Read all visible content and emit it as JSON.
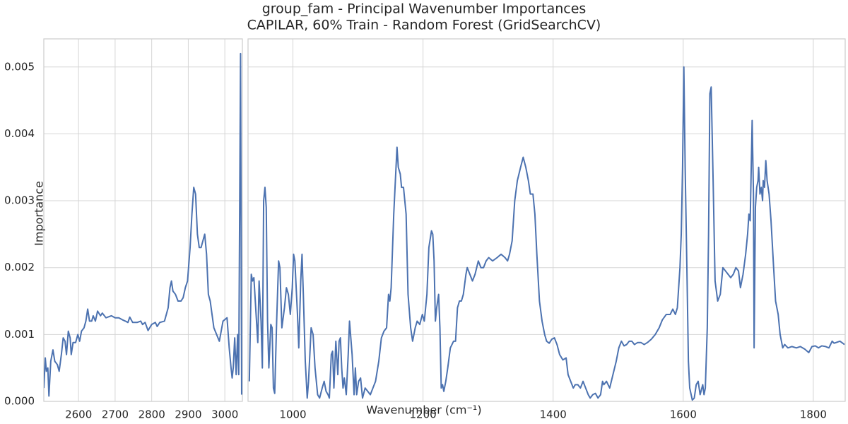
{
  "title": "group_fam - Principal Wavenumber Importances",
  "subtitle": "CAPILAR, 60% Train - Random Forest (GridSearchCV)",
  "x_label": "Wavenumber (cm⁻¹)",
  "y_label": "Importance",
  "chart_data": [
    {
      "type": "line",
      "x": [
        2505,
        2509,
        2512,
        2516,
        2519,
        2524,
        2530,
        2535,
        2542,
        2547,
        2553,
        2558,
        2563,
        2567,
        2572,
        2577,
        2580,
        2585,
        2592,
        2598,
        2603,
        2608,
        2615,
        2620,
        2625,
        2630,
        2636,
        2640,
        2646,
        2652,
        2660,
        2665,
        2675,
        2690,
        2700,
        2710,
        2720,
        2728,
        2735,
        2740,
        2748,
        2760,
        2770,
        2775,
        2782,
        2790,
        2800,
        2810,
        2815,
        2822,
        2835,
        2840,
        2845,
        2850,
        2854,
        2858,
        2865,
        2872,
        2880,
        2886,
        2892,
        2898,
        2905,
        2910,
        2915,
        2920,
        2925,
        2930,
        2935,
        2940,
        2945,
        2950,
        2955,
        2960,
        2965,
        2970,
        2985,
        2995,
        3006,
        3012,
        3017,
        3020,
        3023,
        3027,
        3031,
        3035,
        3038,
        3043,
        3046
      ],
      "series": [
        {
          "color": "#4c72b0",
          "values": [
            0.0002,
            0.00065,
            0.00045,
            0.0005,
            8e-05,
            0.0006,
            0.00077,
            0.0006,
            0.00055,
            0.00045,
            0.0007,
            0.00095,
            0.0009,
            0.0007,
            0.00105,
            0.00095,
            0.0007,
            0.00088,
            0.00088,
            0.001,
            0.0009,
            0.00105,
            0.0011,
            0.0012,
            0.00138,
            0.0012,
            0.0012,
            0.00128,
            0.0012,
            0.00135,
            0.00128,
            0.00132,
            0.00125,
            0.00128,
            0.00125,
            0.00125,
            0.00122,
            0.0012,
            0.00118,
            0.00126,
            0.00118,
            0.00118,
            0.0012,
            0.00115,
            0.00118,
            0.00106,
            0.00115,
            0.00118,
            0.00112,
            0.00118,
            0.0012,
            0.0013,
            0.0014,
            0.0017,
            0.0018,
            0.00165,
            0.0016,
            0.0015,
            0.0015,
            0.00155,
            0.0017,
            0.0018,
            0.0023,
            0.0028,
            0.0032,
            0.0031,
            0.0025,
            0.0023,
            0.0023,
            0.0024,
            0.0025,
            0.0022,
            0.0016,
            0.0015,
            0.0013,
            0.0011,
            0.0009,
            0.0012,
            0.00125,
            0.0008,
            0.0005,
            0.00035,
            0.0005,
            0.00095,
            0.0004,
            0.001,
            0.0004,
            0.0052,
            0.0001
          ]
        }
      ],
      "xlim": [
        2505,
        3048
      ],
      "xticks": [
        2600,
        2700,
        2800,
        2900,
        3000
      ],
      "ylim": [
        0,
        0.00542
      ],
      "yticks": [
        {
          "value": 0,
          "label": "0.000"
        },
        0.001,
        0.002,
        0.003,
        0.004,
        0.005
      ],
      "grid": true
    },
    {
      "type": "line",
      "x": [
        933,
        936,
        938,
        940,
        944,
        946,
        948,
        951,
        953,
        955,
        957,
        959,
        961,
        963,
        966,
        968,
        970,
        972,
        975,
        978,
        980,
        983,
        987,
        990,
        993,
        996,
        999,
        1001,
        1003,
        1007,
        1009,
        1012,
        1014,
        1016,
        1019,
        1022,
        1024,
        1028,
        1031,
        1034,
        1038,
        1041,
        1045,
        1048,
        1051,
        1054,
        1056,
        1059,
        1061,
        1063,
        1066,
        1069,
        1071,
        1073,
        1075,
        1077,
        1079,
        1082,
        1085,
        1087,
        1091,
        1094,
        1096,
        1098,
        1101,
        1104,
        1107,
        1111,
        1115,
        1119,
        1123,
        1127,
        1132,
        1136,
        1140,
        1144,
        1147,
        1149,
        1151,
        1155,
        1158,
        1160,
        1162,
        1165,
        1167,
        1170,
        1174,
        1177,
        1181,
        1184,
        1188,
        1191,
        1195,
        1199,
        1202,
        1206,
        1209,
        1213,
        1215,
        1217,
        1219,
        1221,
        1224,
        1226,
        1228,
        1230,
        1232,
        1235,
        1238,
        1242,
        1247,
        1250,
        1253,
        1256,
        1259,
        1262,
        1266,
        1268,
        1272,
        1276,
        1280,
        1285,
        1289,
        1293,
        1297,
        1301,
        1307,
        1314,
        1320,
        1326,
        1330,
        1333,
        1337,
        1341,
        1345,
        1350,
        1354,
        1358,
        1362,
        1365,
        1369,
        1372,
        1375,
        1379,
        1383,
        1387,
        1390,
        1394,
        1398,
        1402,
        1406,
        1410,
        1415,
        1420,
        1423,
        1427,
        1431,
        1434,
        1438,
        1442,
        1446,
        1450,
        1454,
        1457,
        1461,
        1465,
        1469,
        1473,
        1476,
        1478,
        1482,
        1487,
        1492,
        1497,
        1501,
        1505,
        1509,
        1513,
        1517,
        1521,
        1525,
        1530,
        1535,
        1540,
        1545,
        1551,
        1557,
        1563,
        1568,
        1574,
        1580,
        1584,
        1588,
        1591,
        1595,
        1597,
        1599,
        1601,
        1603,
        1606,
        1608,
        1610,
        1614,
        1617,
        1620,
        1623,
        1626,
        1630,
        1632,
        1634,
        1637,
        1639,
        1641,
        1643,
        1646,
        1649,
        1653,
        1657,
        1661,
        1665,
        1669,
        1673,
        1677,
        1681,
        1685,
        1688,
        1692,
        1696,
        1699,
        1701,
        1703,
        1706,
        1708,
        1709,
        1711,
        1713,
        1715,
        1716,
        1718,
        1720,
        1722,
        1723,
        1725,
        1727,
        1729,
        1732,
        1735,
        1739,
        1742,
        1746,
        1749,
        1753,
        1756,
        1761,
        1767,
        1774,
        1780,
        1787,
        1793,
        1798,
        1803,
        1808,
        1813,
        1819,
        1824,
        1829,
        1832,
        1841,
        1848
      ],
      "series": [
        {
          "color": "#4c72b0",
          "values": [
            0.0003,
            0.0019,
            0.0018,
            0.00185,
            0.0012,
            0.00088,
            0.0018,
            0.0012,
            0.0005,
            0.003,
            0.0032,
            0.0029,
            0.0012,
            0.0005,
            0.00115,
            0.0011,
            0.0002,
            0.00012,
            0.0012,
            0.0021,
            0.002,
            0.0011,
            0.0014,
            0.0017,
            0.0016,
            0.0013,
            0.0017,
            0.0022,
            0.0021,
            0.0013,
            0.0008,
            0.0018,
            0.0022,
            0.0016,
            0.0006,
            5e-05,
            0.0003,
            0.0011,
            0.001,
            0.0005,
            0.0001,
            5e-05,
            0.0002,
            0.0003,
            0.00015,
            0.0001,
            5e-05,
            0.0007,
            0.00075,
            0.0002,
            0.0009,
            0.0004,
            0.0009,
            0.00095,
            0.0005,
            0.0002,
            0.00035,
            0.0001,
            0.0007,
            0.0012,
            0.0007,
            0.0001,
            0.0005,
            0.0001,
            0.0003,
            0.00035,
            5e-05,
            0.0002,
            0.00015,
            0.0001,
            0.0002,
            0.0003,
            0.0006,
            0.00095,
            0.00105,
            0.0011,
            0.0016,
            0.0015,
            0.0017,
            0.0028,
            0.0034,
            0.0038,
            0.0035,
            0.0034,
            0.0032,
            0.0032,
            0.0028,
            0.0016,
            0.0011,
            0.0009,
            0.0011,
            0.0012,
            0.00115,
            0.0013,
            0.0012,
            0.0016,
            0.0023,
            0.00255,
            0.0025,
            0.0021,
            0.0012,
            0.0014,
            0.0016,
            0.0011,
            0.0002,
            0.00025,
            0.00015,
            0.0003,
            0.0005,
            0.0008,
            0.0009,
            0.0009,
            0.0014,
            0.0015,
            0.0015,
            0.0016,
            0.0019,
            0.002,
            0.0019,
            0.0018,
            0.0019,
            0.0021,
            0.002,
            0.002,
            0.0021,
            0.00215,
            0.0021,
            0.00215,
            0.0022,
            0.00215,
            0.0021,
            0.0022,
            0.0024,
            0.003,
            0.0033,
            0.0035,
            0.00365,
            0.0035,
            0.0033,
            0.0031,
            0.0031,
            0.0028,
            0.0022,
            0.0015,
            0.0012,
            0.001,
            0.0009,
            0.00087,
            0.00093,
            0.00095,
            0.00085,
            0.0007,
            0.00062,
            0.00065,
            0.0004,
            0.0003,
            0.0002,
            0.00025,
            0.00025,
            0.0002,
            0.0003,
            0.0002,
            0.0001,
            5e-05,
            0.0001,
            0.00012,
            5e-05,
            0.0001,
            0.0003,
            0.00025,
            0.0003,
            0.0002,
            0.0004,
            0.0006,
            0.0008,
            0.0009,
            0.00083,
            0.00085,
            0.0009,
            0.0009,
            0.00085,
            0.00088,
            0.00088,
            0.00085,
            0.00088,
            0.00093,
            0.001,
            0.0011,
            0.00122,
            0.0013,
            0.0013,
            0.00138,
            0.0013,
            0.0014,
            0.002,
            0.0025,
            0.0035,
            0.005,
            0.0035,
            0.0018,
            0.0006,
            0.0002,
            2e-05,
            5e-05,
            0.00025,
            0.0003,
            0.0001,
            0.00025,
            0.0001,
            0.0002,
            0.0011,
            0.0025,
            0.0046,
            0.0047,
            0.0033,
            0.0018,
            0.0015,
            0.0016,
            0.002,
            0.00195,
            0.0019,
            0.00185,
            0.0019,
            0.002,
            0.00195,
            0.0017,
            0.0019,
            0.0022,
            0.0025,
            0.0028,
            0.0027,
            0.0042,
            0.0031,
            0.0008,
            0.0029,
            0.0032,
            0.0033,
            0.0035,
            0.0031,
            0.0032,
            0.003,
            0.0033,
            0.0032,
            0.0036,
            0.0033,
            0.0031,
            0.0027,
            0.002,
            0.0015,
            0.0013,
            0.001,
            0.0008,
            0.00085,
            0.0008,
            0.00082,
            0.0008,
            0.00082,
            0.00078,
            0.00073,
            0.00082,
            0.00083,
            0.0008,
            0.00083,
            0.00082,
            0.0008,
            0.0009,
            0.00087,
            0.0009,
            0.00085
          ]
        }
      ],
      "xlim": [
        931,
        1849
      ],
      "xticks": [
        1000,
        1200,
        1400,
        1600,
        1800
      ],
      "grid": true
    }
  ]
}
